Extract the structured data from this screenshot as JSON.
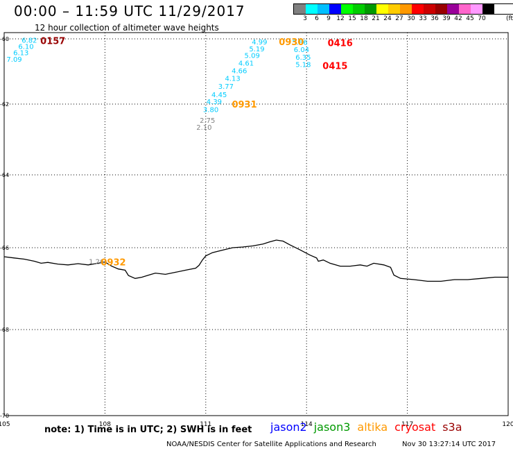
{
  "header": {
    "title": "00:00 – 11:59 UTC 11/29/2017",
    "subtitle": "12 hour collection of altimeter wave heights"
  },
  "legend": {
    "labels": [
      "3",
      "6",
      "9",
      "12",
      "15",
      "18",
      "21",
      "24",
      "27",
      "30",
      "33",
      "36",
      "39",
      "42",
      "45",
      "70"
    ],
    "unit": "(ft)",
    "colors": [
      "#808080",
      "#00ffff",
      "#00bfff",
      "#0000ff",
      "#00ff00",
      "#00cc00",
      "#009900",
      "#ffff00",
      "#ffcc00",
      "#ff9900",
      "#ff0000",
      "#cc0000",
      "#990000",
      "#990099",
      "#ff66cc",
      "#ff99ff",
      "#000000"
    ]
  },
  "map": {
    "lon_range": [
      105,
      120
    ],
    "lat_range": [
      -60,
      -70
    ],
    "lon_ticks": [
      "105",
      "108",
      "111",
      "114",
      "117",
      "120"
    ],
    "lat_ticks": [
      "-60",
      "-62",
      "-64",
      "-66",
      "-68",
      "-70"
    ],
    "grid": true,
    "coastline_color": "#000000",
    "coastline": [
      [
        105.0,
        -66.22
      ],
      [
        105.3,
        -66.25
      ],
      [
        105.6,
        -66.28
      ],
      [
        105.9,
        -66.33
      ],
      [
        106.1,
        -66.38
      ],
      [
        106.3,
        -66.36
      ],
      [
        106.6,
        -66.4
      ],
      [
        106.9,
        -66.42
      ],
      [
        107.2,
        -66.39
      ],
      [
        107.5,
        -66.42
      ],
      [
        107.8,
        -66.38
      ],
      [
        108.0,
        -66.35
      ],
      [
        108.2,
        -66.45
      ],
      [
        108.4,
        -66.52
      ],
      [
        108.6,
        -66.55
      ],
      [
        108.7,
        -66.68
      ],
      [
        108.9,
        -66.75
      ],
      [
        109.1,
        -66.72
      ],
      [
        109.3,
        -66.67
      ],
      [
        109.5,
        -66.62
      ],
      [
        109.8,
        -66.65
      ],
      [
        110.1,
        -66.6
      ],
      [
        110.4,
        -66.55
      ],
      [
        110.7,
        -66.5
      ],
      [
        110.8,
        -66.43
      ],
      [
        110.9,
        -66.3
      ],
      [
        111.0,
        -66.2
      ],
      [
        111.2,
        -66.12
      ],
      [
        111.5,
        -66.06
      ],
      [
        111.8,
        -66.0
      ],
      [
        112.1,
        -65.98
      ],
      [
        112.4,
        -65.95
      ],
      [
        112.7,
        -65.9
      ],
      [
        112.9,
        -65.84
      ],
      [
        113.1,
        -65.79
      ],
      [
        113.3,
        -65.82
      ],
      [
        113.5,
        -65.92
      ],
      [
        113.8,
        -66.05
      ],
      [
        114.1,
        -66.18
      ],
      [
        114.3,
        -66.25
      ],
      [
        114.35,
        -66.33
      ],
      [
        114.5,
        -66.3
      ],
      [
        114.7,
        -66.38
      ],
      [
        115.0,
        -66.45
      ],
      [
        115.3,
        -66.45
      ],
      [
        115.6,
        -66.42
      ],
      [
        115.8,
        -66.45
      ],
      [
        116.0,
        -66.38
      ],
      [
        116.3,
        -66.42
      ],
      [
        116.5,
        -66.48
      ],
      [
        116.6,
        -66.67
      ],
      [
        116.8,
        -66.75
      ],
      [
        117.2,
        -66.78
      ],
      [
        117.6,
        -66.82
      ],
      [
        118.0,
        -66.82
      ],
      [
        118.4,
        -66.78
      ],
      [
        118.8,
        -66.78
      ],
      [
        119.2,
        -66.75
      ],
      [
        119.6,
        -66.72
      ],
      [
        120.0,
        -66.72
      ]
    ],
    "observations": [
      {
        "lon": 105.75,
        "lat": -60.03,
        "label": "6.82",
        "color": "#00ccff"
      },
      {
        "lon": 105.65,
        "lat": -60.22,
        "label": "6.10",
        "color": "#00ccff"
      },
      {
        "lon": 105.5,
        "lat": -60.42,
        "label": "6.13",
        "color": "#00ccff"
      },
      {
        "lon": 105.3,
        "lat": -60.62,
        "label": "7.09",
        "color": "#00ccff"
      },
      {
        "lon": 110.95,
        "lat": -62.65,
        "label": "2.10",
        "color": "#808080"
      },
      {
        "lon": 111.05,
        "lat": -62.45,
        "label": "2.75",
        "color": "#808080"
      },
      {
        "lon": 111.15,
        "lat": -62.15,
        "label": "3.80",
        "color": "#00ccff"
      },
      {
        "lon": 111.25,
        "lat": -61.92,
        "label": "4.39",
        "color": "#00ccff"
      },
      {
        "lon": 111.4,
        "lat": -61.7,
        "label": "4.45",
        "color": "#00ccff"
      },
      {
        "lon": 111.6,
        "lat": -61.45,
        "label": "3.77",
        "color": "#00ccff"
      },
      {
        "lon": 111.8,
        "lat": -61.2,
        "label": "4.13",
        "color": "#00ccff"
      },
      {
        "lon": 112.0,
        "lat": -60.97,
        "label": "4.66",
        "color": "#00ccff"
      },
      {
        "lon": 112.2,
        "lat": -60.73,
        "label": "4.61",
        "color": "#00ccff"
      },
      {
        "lon": 112.38,
        "lat": -60.5,
        "label": "5.09",
        "color": "#00ccff"
      },
      {
        "lon": 112.52,
        "lat": -60.3,
        "label": "5.19",
        "color": "#00ccff"
      },
      {
        "lon": 112.6,
        "lat": -60.08,
        "label": "4.99",
        "color": "#00ccff"
      },
      {
        "lon": 113.8,
        "lat": -60.1,
        "label": "5.86",
        "color": "#00ccff"
      },
      {
        "lon": 113.85,
        "lat": -60.32,
        "label": "6.04",
        "color": "#00ccff"
      },
      {
        "lon": 113.9,
        "lat": -60.55,
        "label": "6.35",
        "color": "#00ccff"
      },
      {
        "lon": 113.9,
        "lat": -60.78,
        "label": "5.18",
        "color": "#00ccff"
      },
      {
        "lon": 107.75,
        "lat": -66.33,
        "label": "1.26",
        "color": "#808080"
      }
    ],
    "pass_times": [
      {
        "lon": 106.45,
        "lat": -60.05,
        "label": "0157",
        "color": "#990000"
      },
      {
        "lon": 113.55,
        "lat": -60.08,
        "label": "0930",
        "color": "#ff9900"
      },
      {
        "lon": 115.0,
        "lat": -60.12,
        "label": "0416",
        "color": "#ff0000"
      },
      {
        "lon": 114.85,
        "lat": -60.82,
        "label": "0415",
        "color": "#ff0000"
      },
      {
        "lon": 112.15,
        "lat": -62.0,
        "label": "0931",
        "color": "#ff9900"
      },
      {
        "lon": 108.25,
        "lat": -66.35,
        "label": "0932",
        "color": "#ff9900"
      }
    ]
  },
  "footer": {
    "note": "note: 1) Time is in UTC; 2) SWH is in feet",
    "satellites": [
      {
        "name": "jason2",
        "color": "#0000ff"
      },
      {
        "name": "jason3",
        "color": "#009900"
      },
      {
        "name": "altika",
        "color": "#ff9900"
      },
      {
        "name": "cryosat",
        "color": "#ff0000"
      },
      {
        "name": "s3a",
        "color": "#990000"
      }
    ],
    "credit": "NOAA/NESDIS Center for Satellite Applications and Research",
    "timestamp": "Nov 30 13:27:14 UTC 2017"
  }
}
